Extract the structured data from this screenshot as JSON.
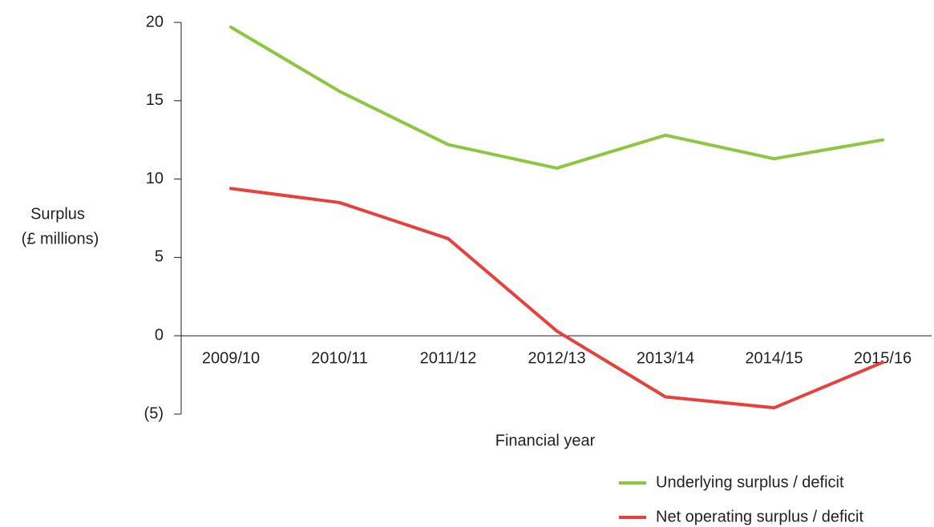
{
  "chart_data": {
    "type": "line",
    "y_label": [
      "Surplus",
      "(£ millions)"
    ],
    "x_label": "Financial year",
    "categories": [
      "2009/10",
      "2010/11",
      "2011/12",
      "2012/13",
      "2013/14",
      "2014/15",
      "2015/16"
    ],
    "series": [
      {
        "name": "Underlying surplus / deficit",
        "color": "#8dc63f",
        "values": [
          19.7,
          15.6,
          12.2,
          10.7,
          12.8,
          11.3,
          12.5
        ]
      },
      {
        "name": "Net operating surplus / deficit",
        "color": "#e8413c",
        "values": [
          9.4,
          8.5,
          6.2,
          0.3,
          -3.9,
          -4.6,
          -1.7
        ]
      }
    ],
    "ylim": [
      -5,
      20
    ],
    "yticks": [
      {
        "value": -5,
        "label": "(5)"
      },
      0,
      5,
      10,
      15,
      20
    ],
    "legend": "bottom-right"
  }
}
